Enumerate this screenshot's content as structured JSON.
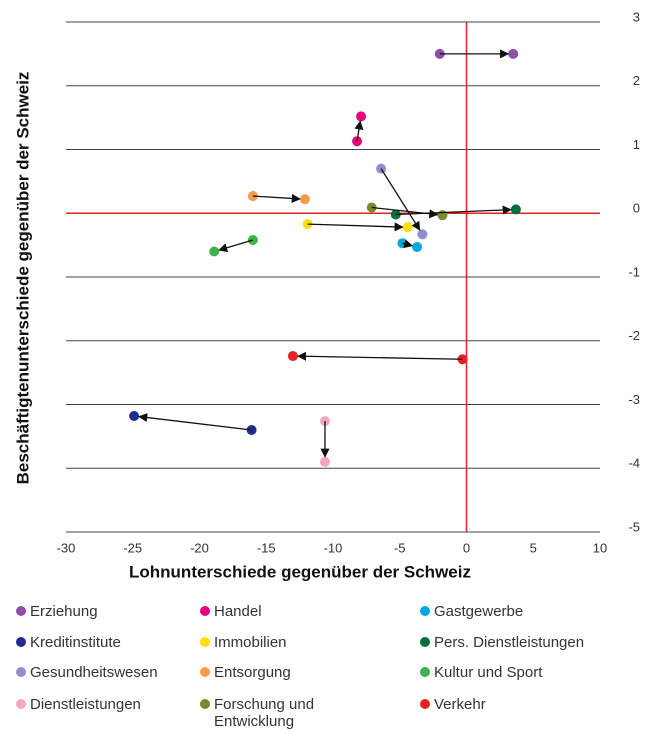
{
  "chart_data": {
    "type": "scatter",
    "x_label": "Lohnunterschiede gegenüber der Schweiz",
    "y_label": "Beschäftigtenunterschiede gegenüber der Schweiz",
    "xlim": [
      -30,
      10
    ],
    "xticks": [
      -30,
      -25,
      -20,
      -15,
      -10,
      -5,
      0,
      5,
      10
    ],
    "ylim": [
      -5,
      3
    ],
    "yticks": [
      3,
      2,
      1,
      0,
      -1,
      -2,
      -3,
      -4,
      -5
    ],
    "grid": true,
    "zero_line_color": "#e52321",
    "arrows": true,
    "series": [
      {
        "name": "Erziehung",
        "color": "#8e4fa8",
        "x": [
          -2.0,
          3.5
        ],
        "values": [
          2.5,
          2.5
        ]
      },
      {
        "name": "Handel",
        "color": "#e6007e",
        "x": [
          -8.2,
          -7.9
        ],
        "values": [
          1.13,
          1.52
        ]
      },
      {
        "name": "Gastgewerbe",
        "color": "#00a8e0",
        "x": [
          -4.8,
          -3.7
        ],
        "values": [
          -0.47,
          -0.53
        ]
      },
      {
        "name": "Kreditinstitute",
        "color": "#1f2e8c",
        "x": [
          -16.1,
          -24.9
        ],
        "values": [
          -3.4,
          -3.18
        ]
      },
      {
        "name": "Immobilien",
        "color": "#ffe000",
        "x": [
          -11.9,
          -4.4
        ],
        "values": [
          -0.17,
          -0.22
        ]
      },
      {
        "name": "Pers. Dienstleistungen",
        "color": "#006f3c",
        "x": [
          -5.3,
          3.7
        ],
        "values": [
          -0.02,
          0.06
        ]
      },
      {
        "name": "Gesundheitswesen",
        "color": "#8f8fc9",
        "x": [
          -6.4,
          -3.3
        ],
        "values": [
          0.7,
          -0.33
        ]
      },
      {
        "name": "Entsorgung",
        "color": "#f39c4e",
        "x": [
          -16.0,
          -12.1
        ],
        "values": [
          0.27,
          0.22
        ]
      },
      {
        "name": "Kultur und Sport",
        "color": "#3cb44b",
        "x": [
          -16.0,
          -18.9
        ],
        "values": [
          -0.42,
          -0.6
        ]
      },
      {
        "name": "Dienstleistungen",
        "color": "#f4a6c4",
        "x": [
          -10.6,
          -10.6
        ],
        "values": [
          -3.26,
          -3.9
        ]
      },
      {
        "name": "Forschung und Entwicklung",
        "color": "#7a8a2a",
        "x": [
          -7.1,
          -1.8
        ],
        "values": [
          0.09,
          -0.03
        ]
      },
      {
        "name": "Verkehr",
        "color": "#e52321",
        "x": [
          -0.3,
          -13.0
        ],
        "values": [
          -2.29,
          -2.24
        ]
      }
    ]
  }
}
